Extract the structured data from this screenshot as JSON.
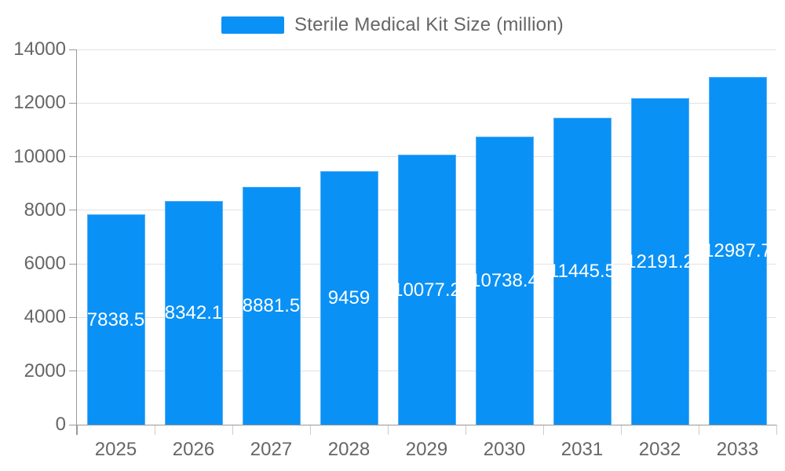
{
  "legend": {
    "label": "Sterile Medical Kit Size (million)"
  },
  "chart_data": {
    "type": "bar",
    "title": "Sterile Medical Kit Size (million)",
    "series_name": "Sterile Medical Kit Size (million)",
    "categories": [
      "2025",
      "2026",
      "2027",
      "2028",
      "2029",
      "2030",
      "2031",
      "2032",
      "2033"
    ],
    "values": [
      7838.5,
      8342.1,
      8881.5,
      9459,
      10077.2,
      10738.4,
      11445.5,
      12191.2,
      12987.7
    ],
    "value_labels": [
      "7838.5",
      "8342.1",
      "8881.5",
      "9459",
      "10077.2",
      "10738.4",
      "11445.5",
      "12191.2",
      "12987.7"
    ],
    "xlabel": "",
    "ylabel": "",
    "ylim": [
      0,
      14000
    ],
    "yticks": [
      0,
      2000,
      4000,
      6000,
      8000,
      10000,
      12000,
      14000
    ],
    "ytick_labels": [
      "0",
      "2000",
      "4000",
      "6000",
      "8000",
      "10000",
      "12000",
      "14000"
    ],
    "grid": true,
    "legend_position": "top",
    "colors": {
      "bar_fill": "#0a91f5",
      "bar_border": "#55b0f8",
      "bar_value_text": "#ffffff",
      "axis_text": "#666666",
      "gridline": "#e2e2e2",
      "axis_line": "#999999",
      "boundary_tick": "#cccccc",
      "background": "#ffffff"
    }
  }
}
